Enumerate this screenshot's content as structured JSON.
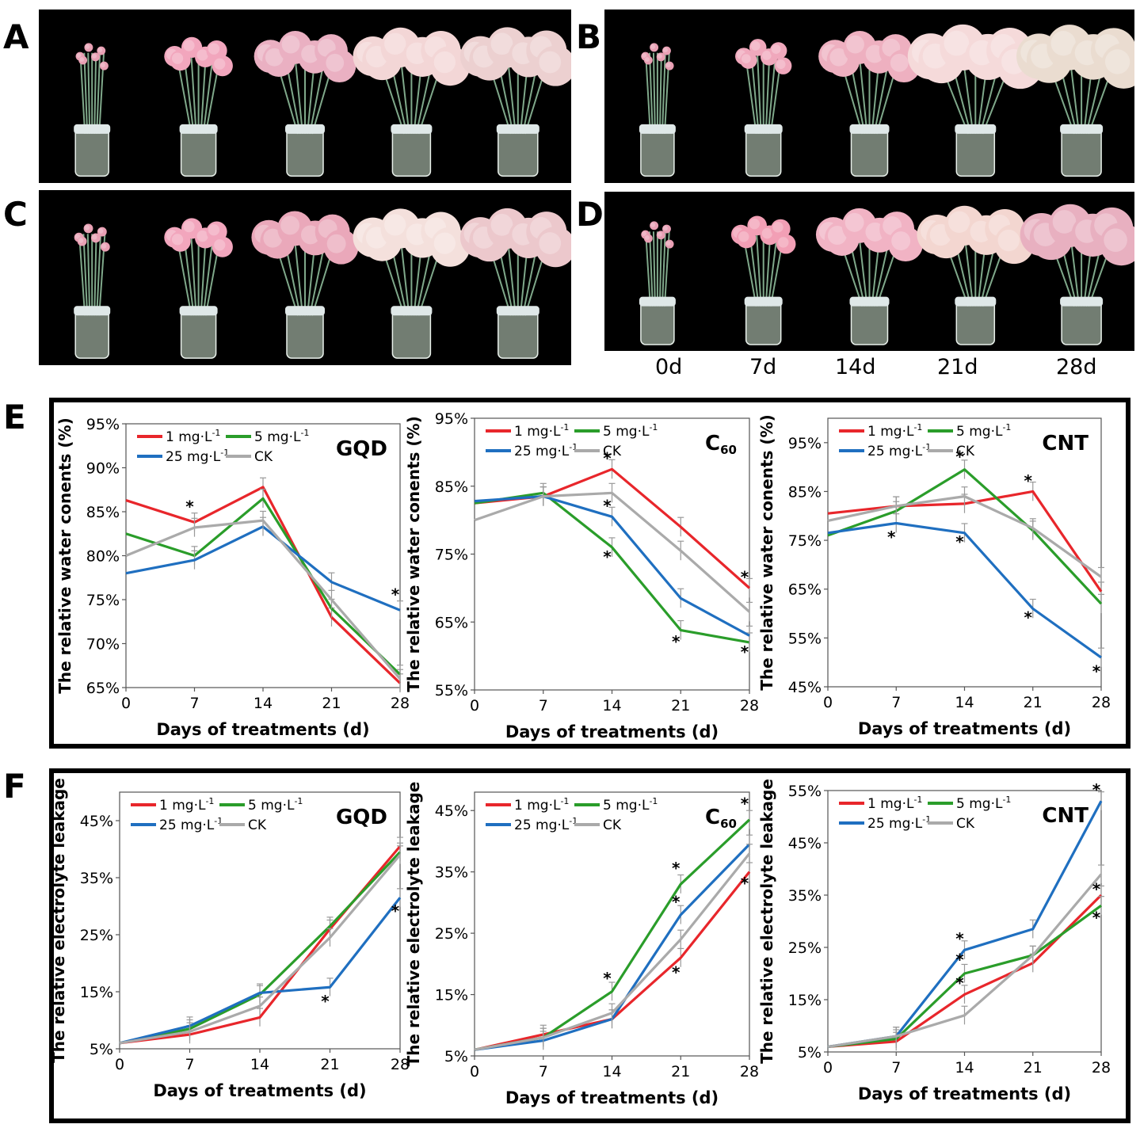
{
  "panel_labels": [
    "A",
    "B",
    "C",
    "D",
    "E",
    "F"
  ],
  "day_labels": [
    "0d",
    "7d",
    "14d",
    "21d",
    "28d"
  ],
  "photo_panels": [
    {
      "label": "A",
      "flowers": "carnations in vases"
    },
    {
      "label": "B",
      "flowers": "carnations in vases"
    },
    {
      "label": "C",
      "flowers": "carnations in vases"
    },
    {
      "label": "D",
      "flowers": "carnations in vases"
    }
  ],
  "colors": {
    "red": "#e8262b",
    "green": "#2a9d2a",
    "blue": "#1f6fc0",
    "gray": "#aaaaaa"
  },
  "chart_data": [
    {
      "type": "line",
      "panel": "E",
      "title": "GQD",
      "xlabel": "Days of treatments (d)",
      "ylabel": "The relative water conents (%)",
      "x": [
        0,
        7,
        14,
        21,
        28
      ],
      "ylim": [
        65,
        95
      ],
      "yticks": [
        "65%",
        "70%",
        "75%",
        "80%",
        "85%",
        "90%",
        "95%"
      ],
      "ytick_values": [
        65,
        70,
        75,
        80,
        85,
        90,
        95
      ],
      "series": [
        {
          "name": "1 mg·L",
          "values": [
            86.3,
            83.8,
            87.8,
            73.0,
            65.5
          ]
        },
        {
          "name": "5 mg·L",
          "values": [
            82.5,
            80.0,
            86.5,
            74.0,
            66.5
          ]
        },
        {
          "name": "25 mg·L",
          "values": [
            78.0,
            79.5,
            83.3,
            77.0,
            73.8
          ]
        },
        {
          "name": "CK",
          "values": [
            80.0,
            83.2,
            84.0,
            75.0,
            66.0
          ]
        }
      ],
      "markers": [
        {
          "x": 7,
          "y": 85.5
        },
        {
          "x": 28,
          "y": 75.5
        }
      ]
    },
    {
      "type": "line",
      "panel": "E",
      "title": "C60",
      "xlabel": "Days of treatments (d)",
      "ylabel": "The relative water conents (%)",
      "x": [
        0,
        7,
        14,
        21,
        28
      ],
      "ylim": [
        55,
        95
      ],
      "yticks": [
        "55%",
        "65%",
        "75%",
        "85%",
        "95%"
      ],
      "ytick_values": [
        55,
        65,
        75,
        85,
        95
      ],
      "series": [
        {
          "name": "1 mg·L",
          "values": [
            82.5,
            83.5,
            87.5,
            79.0,
            70.0
          ]
        },
        {
          "name": "5 mg·L",
          "values": [
            82.5,
            84.0,
            76.0,
            63.8,
            62.0
          ]
        },
        {
          "name": "25 mg·L",
          "values": [
            82.8,
            83.5,
            80.5,
            68.5,
            63.0
          ]
        },
        {
          "name": "CK",
          "values": [
            80.0,
            83.5,
            84.0,
            75.5,
            66.5
          ]
        }
      ],
      "markers": [
        {
          "x": 14,
          "y": 89.0
        },
        {
          "x": 14,
          "y": 82.0
        },
        {
          "x": 14,
          "y": 74.5
        },
        {
          "x": 21,
          "y": 62.0
        },
        {
          "x": 28,
          "y": 71.5
        },
        {
          "x": 28,
          "y": 60.5
        }
      ]
    },
    {
      "type": "line",
      "panel": "E",
      "title": "CNT",
      "xlabel": "Days of treatments (d)",
      "ylabel": "The relative water conents (%)",
      "x": [
        0,
        7,
        14,
        21,
        28
      ],
      "ylim": [
        45,
        100
      ],
      "yticks": [
        "45%",
        "55%",
        "65%",
        "75%",
        "85%",
        "95%"
      ],
      "ytick_values": [
        45,
        55,
        65,
        75,
        85,
        95
      ],
      "series": [
        {
          "name": "1 mg·L",
          "values": [
            80.5,
            82.0,
            82.5,
            85.0,
            64.5
          ]
        },
        {
          "name": "5 mg·L",
          "values": [
            76.0,
            81.0,
            89.5,
            77.0,
            62.0
          ]
        },
        {
          "name": "25 mg·L",
          "values": [
            76.5,
            78.5,
            76.5,
            61.0,
            51.0
          ]
        },
        {
          "name": "CK",
          "values": [
            79.0,
            82.0,
            84.0,
            77.5,
            67.5
          ]
        }
      ],
      "markers": [
        {
          "x": 7,
          "y": 75.5
        },
        {
          "x": 14,
          "y": 92.0
        },
        {
          "x": 14,
          "y": 74.5
        },
        {
          "x": 21,
          "y": 87.0
        },
        {
          "x": 21,
          "y": 59.0
        },
        {
          "x": 28,
          "y": 48.0
        }
      ]
    },
    {
      "type": "line",
      "panel": "F",
      "title": "GQD",
      "xlabel": "Days of treatments (d)",
      "ylabel": "The relative electrolyte leakage",
      "x": [
        0,
        7,
        14,
        21,
        28
      ],
      "ylim": [
        5,
        50
      ],
      "yticks": [
        "5%",
        "15%",
        "25%",
        "35%",
        "45%"
      ],
      "ytick_values": [
        5,
        15,
        25,
        35,
        45
      ],
      "series": [
        {
          "name": "1 mg·L",
          "values": [
            6.0,
            7.5,
            10.5,
            26.0,
            40.5
          ]
        },
        {
          "name": "5 mg·L",
          "values": [
            6.0,
            8.5,
            14.5,
            26.5,
            39.5
          ]
        },
        {
          "name": "25 mg·L",
          "values": [
            6.0,
            9.0,
            14.8,
            15.8,
            31.5
          ]
        },
        {
          "name": "CK",
          "values": [
            6.0,
            8.0,
            12.5,
            24.5,
            39.0
          ]
        }
      ],
      "markers": [
        {
          "x": 21,
          "y": 13.2
        },
        {
          "x": 28,
          "y": 29.0
        }
      ]
    },
    {
      "type": "line",
      "panel": "F",
      "title": "C60",
      "xlabel": "Days of treatments (d)",
      "ylabel": "The relative electrolyte leakage",
      "x": [
        0,
        7,
        14,
        21,
        28
      ],
      "ylim": [
        5,
        48
      ],
      "yticks": [
        "5%",
        "15%",
        "25%",
        "35%",
        "45%"
      ],
      "ytick_values": [
        5,
        15,
        25,
        35,
        45
      ],
      "series": [
        {
          "name": "1 mg·L",
          "values": [
            6.0,
            8.5,
            11.0,
            21.0,
            35.0
          ]
        },
        {
          "name": "5 mg·L",
          "values": [
            6.0,
            8.0,
            15.5,
            33.0,
            43.5
          ]
        },
        {
          "name": "25 mg·L",
          "values": [
            6.0,
            7.5,
            11.0,
            28.0,
            39.5
          ]
        },
        {
          "name": "CK",
          "values": [
            6.0,
            8.0,
            12.0,
            24.0,
            38.0
          ]
        }
      ],
      "markers": [
        {
          "x": 14,
          "y": 17.5
        },
        {
          "x": 21,
          "y": 35.5
        },
        {
          "x": 21,
          "y": 30.0
        },
        {
          "x": 21,
          "y": 18.5
        },
        {
          "x": 28,
          "y": 46.0
        },
        {
          "x": 28,
          "y": 33.0
        }
      ]
    },
    {
      "type": "line",
      "panel": "F",
      "title": "CNT",
      "xlabel": "Days of treatments (d)",
      "ylabel": "The relative electrolyte leakage",
      "x": [
        0,
        7,
        14,
        21,
        28
      ],
      "ylim": [
        5,
        55
      ],
      "yticks": [
        "5%",
        "15%",
        "25%",
        "35%",
        "45%",
        "55%"
      ],
      "ytick_values": [
        5,
        15,
        25,
        35,
        45,
        55
      ],
      "series": [
        {
          "name": "1 mg·L",
          "values": [
            6.0,
            7.0,
            16.0,
            22.0,
            35.0
          ]
        },
        {
          "name": "5 mg·L",
          "values": [
            6.0,
            7.5,
            20.0,
            23.5,
            33.0
          ]
        },
        {
          "name": "25 mg·L",
          "values": [
            6.0,
            8.0,
            24.5,
            28.5,
            53.0
          ]
        },
        {
          "name": "CK",
          "values": [
            6.0,
            8.0,
            12.0,
            23.5,
            39.0
          ]
        }
      ],
      "markers": [
        {
          "x": 14,
          "y": 26.5
        },
        {
          "x": 14,
          "y": 22.5
        },
        {
          "x": 14,
          "y": 18.0
        },
        {
          "x": 28,
          "y": 55.0
        },
        {
          "x": 28,
          "y": 36.0
        },
        {
          "x": 28,
          "y": 30.5
        }
      ]
    }
  ],
  "legend_sup": "-1",
  "marker_text": "*"
}
